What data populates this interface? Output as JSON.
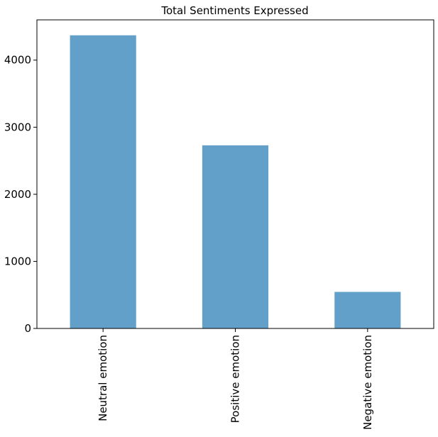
{
  "chart_data": {
    "type": "bar",
    "title": "Total Sentiments Expressed",
    "categories": [
      "Neutral emotion",
      "Positive emotion",
      "Negative emotion"
    ],
    "values": [
      4370,
      2730,
      545
    ],
    "xlabel": "",
    "ylabel": "",
    "ylim": [
      0,
      4600
    ],
    "yticks": [
      0,
      1000,
      2000,
      3000,
      4000
    ],
    "ytick_labels": [
      "0",
      "1000",
      "2000",
      "3000",
      "4000"
    ],
    "grid": false,
    "legend": "none",
    "bar_color": "#62a0ca"
  }
}
